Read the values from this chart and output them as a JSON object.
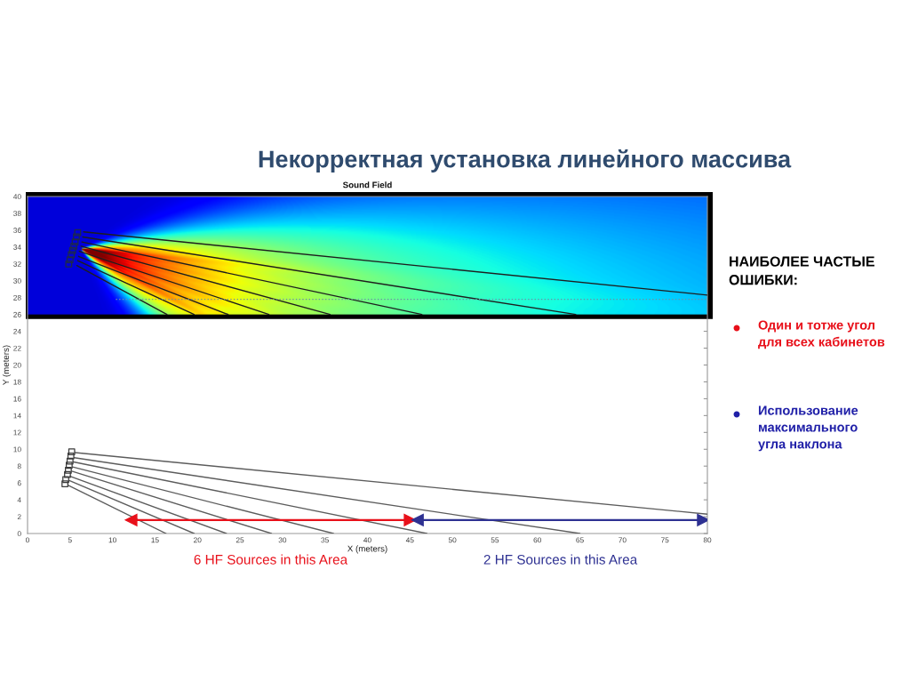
{
  "chart_data": {
    "type": "line",
    "title": "Некорректная установка линейного массива",
    "subtitle": "Sound Field",
    "xlabel": "X (meters)",
    "ylabel": "Y (meters)",
    "xlim": [
      0,
      80
    ],
    "ylim": [
      0,
      40
    ],
    "xticks": [
      0,
      5,
      10,
      15,
      20,
      25,
      30,
      35,
      40,
      45,
      50,
      55,
      60,
      65,
      70,
      75,
      80
    ],
    "yticks": [
      0,
      2,
      4,
      6,
      8,
      10,
      12,
      14,
      16,
      18,
      20,
      22,
      24,
      26,
      28,
      30,
      32,
      34,
      36,
      38,
      40
    ],
    "grid": false,
    "series": [
      {
        "color": "#5c5c5c",
        "x": [
          5.6,
          80
        ],
        "values": [
          9.6,
          2.3
        ]
      },
      {
        "color": "#5c5c5c",
        "x": [
          5.5,
          65
        ],
        "values": [
          9.0,
          0
        ]
      },
      {
        "color": "#5c5c5c",
        "x": [
          5.4,
          47
        ],
        "values": [
          8.5,
          0
        ]
      },
      {
        "color": "#5c5c5c",
        "x": [
          5.3,
          36
        ],
        "values": [
          7.9,
          0
        ]
      },
      {
        "color": "#5c5c5c",
        "x": [
          5.2,
          28.7
        ],
        "values": [
          7.4,
          0
        ]
      },
      {
        "color": "#5c5c5c",
        "x": [
          5.0,
          23.4
        ],
        "values": [
          6.8,
          0
        ]
      },
      {
        "color": "#5c5c5c",
        "x": [
          4.9,
          19.6
        ],
        "values": [
          6.3,
          0
        ]
      },
      {
        "color": "#5c5c5c",
        "x": [
          4.8,
          16.3
        ],
        "values": [
          5.7,
          0
        ]
      },
      {
        "color": "#1e1e1e",
        "x": [
          6.6,
          80
        ],
        "values": [
          35.8,
          28.3
        ]
      },
      {
        "color": "#1e1e1e",
        "x": [
          6.5,
          64.5
        ],
        "values": [
          35.2,
          26
        ]
      },
      {
        "color": "#1e1e1e",
        "x": [
          6.4,
          46.4
        ],
        "values": [
          34.6,
          26
        ]
      },
      {
        "color": "#1e1e1e",
        "x": [
          6.3,
          35.6
        ],
        "values": [
          34.1,
          26
        ]
      },
      {
        "color": "#1e1e1e",
        "x": [
          6.1,
          28.4
        ],
        "values": [
          33.5,
          26
        ]
      },
      {
        "color": "#1e1e1e",
        "x": [
          6.0,
          23.6
        ],
        "values": [
          32.9,
          26
        ]
      },
      {
        "color": "#1e1e1e",
        "x": [
          5.9,
          19.6
        ],
        "values": [
          32.4,
          26
        ]
      },
      {
        "color": "#1e1e1e",
        "x": [
          5.8,
          16.4
        ],
        "values": [
          31.8,
          26
        ]
      },
      {
        "color": "#6d8fa8",
        "line_style": "dotted",
        "x": [
          10.4,
          80
        ],
        "values": [
          27.8,
          27.8
        ]
      },
      {
        "type": "scatter",
        "marker": "square",
        "color": "#3a3a3a",
        "x": [
          5.2,
          5.1,
          5.0,
          4.9,
          4.8,
          4.7,
          4.5,
          4.4
        ],
        "values": [
          9.7,
          9.2,
          8.6,
          8.1,
          7.5,
          7.0,
          6.4,
          5.9
        ]
      },
      {
        "type": "scatter",
        "marker": "square",
        "color": "#1e2a4a",
        "x": [
          5.9,
          5.75,
          5.6,
          5.45,
          5.3,
          5.15,
          5.0,
          4.85
        ],
        "values": [
          35.7,
          35.2,
          34.6,
          34.1,
          33.6,
          33.1,
          32.5,
          32.0
        ]
      },
      {
        "name": "6 HF Sources in this Area",
        "color": "#e8101a",
        "marker": "triangle",
        "x": [
          12.2,
          45.0
        ],
        "values": [
          1.6,
          1.6
        ]
      },
      {
        "name": "2 HF Sources in this Area",
        "color": "#2e3192",
        "marker": "triangle",
        "x": [
          45.9,
          79.5
        ],
        "values": [
          1.6,
          1.6
        ]
      }
    ],
    "bands": [
      {
        "axis": "y",
        "from": 26,
        "to": 40
      }
    ],
    "annotations": [
      "НАИБОЛЕЕ ЧАСТЫЕ\nОШИБКИ:",
      "Один и тотже угол\nдля всех кабинетов",
      "Использование\nмаксимального\nугла наклона"
    ]
  }
}
